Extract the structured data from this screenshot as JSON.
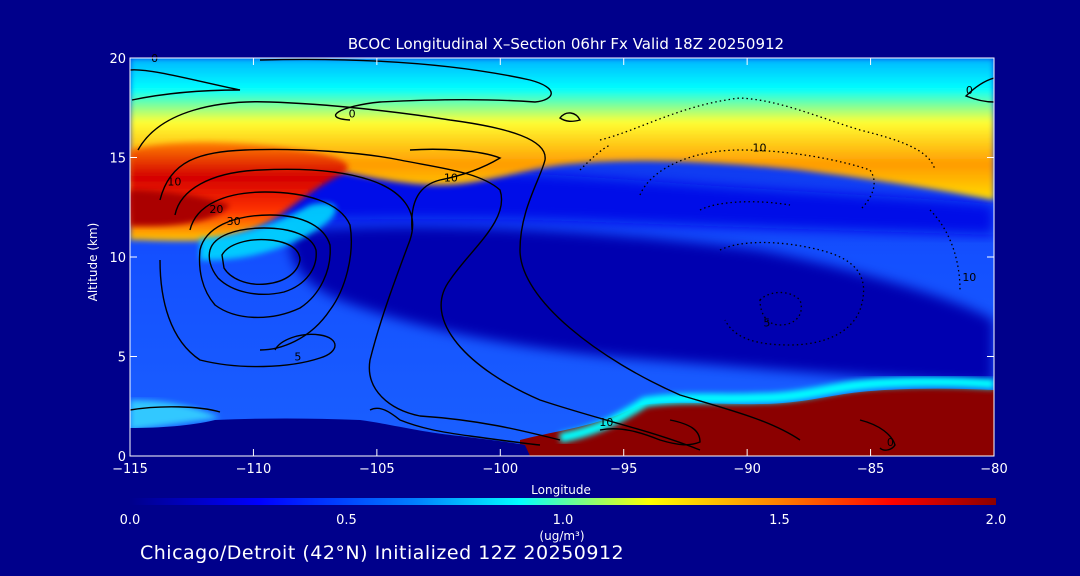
{
  "chart_data": {
    "type": "heatmap",
    "title": "BCOC Longitudinal X–Section 06hr  Fx Valid 18Z 20250912",
    "xlabel": "Longitude",
    "ylabel": "Altitude (km)",
    "xlim": [
      -115,
      -80
    ],
    "ylim": [
      0,
      20
    ],
    "xticks": [
      -115,
      -110,
      -105,
      -100,
      -95,
      -90,
      -85,
      -80
    ],
    "xtick_labels": [
      "−115",
      "−110",
      "−105",
      "−100",
      "−95",
      "−90",
      "−85",
      "−80"
    ],
    "yticks": [
      0,
      5,
      10,
      15,
      20
    ],
    "ytick_labels": [
      "0",
      "5",
      "10",
      "15",
      "20"
    ],
    "colorbar": {
      "min": 0.0,
      "max": 2.0,
      "ticks": [
        0.0,
        0.5,
        1.0,
        1.5,
        2.0
      ],
      "tick_labels": [
        "0.0",
        "0.5",
        "1.0",
        "1.5",
        "2.0"
      ],
      "label_top": "1.0",
      "units": "(ug/m³)",
      "colors": [
        "#00008b",
        "#0000ff",
        "#0080ff",
        "#00ffff",
        "#ffff00",
        "#ff8000",
        "#ff0000",
        "#8b0000"
      ]
    },
    "shaded_field_description": "BCOC concentration shading",
    "contour_labels": [
      {
        "text": "0",
        "lon": -114.0,
        "alt": 19.8
      },
      {
        "text": "0",
        "lon": -106.0,
        "alt": 17.0
      },
      {
        "text": "0",
        "lon": -81.0,
        "alt": 18.2
      },
      {
        "text": "10",
        "lon": -113.2,
        "alt": 13.6
      },
      {
        "text": "20",
        "lon": -111.5,
        "alt": 12.2
      },
      {
        "text": "30",
        "lon": -110.8,
        "alt": 11.6
      },
      {
        "text": "10",
        "lon": -102.0,
        "alt": 13.8
      },
      {
        "text": "10",
        "lon": -89.5,
        "alt": 15.3
      },
      {
        "text": "10",
        "lon": -81.0,
        "alt": 8.8
      },
      {
        "text": "5",
        "lon": -108.2,
        "alt": 4.8
      },
      {
        "text": "5",
        "lon": -89.2,
        "alt": 6.5
      },
      {
        "text": "10",
        "lon": -95.7,
        "alt": 1.5
      },
      {
        "text": "0",
        "lon": -84.2,
        "alt": 0.5
      }
    ]
  },
  "subtitle": "Chicago/Detroit (42°N) Initialized 12Z 20250912"
}
